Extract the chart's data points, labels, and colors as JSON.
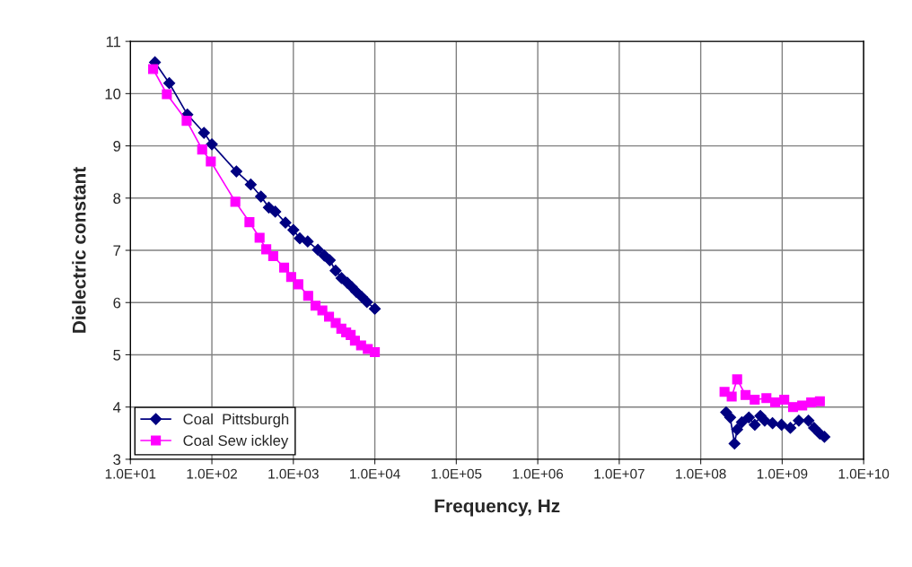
{
  "chart_data": {
    "type": "line",
    "xlabel": "Frequency, Hz",
    "ylabel": "Dielectric constant",
    "log": "x",
    "xlim": [
      10,
      10000000000
    ],
    "ylim": [
      3,
      11
    ],
    "xticks": [
      {
        "value": 10,
        "label": "1.0E+01"
      },
      {
        "value": 100,
        "label": "1.0E+02"
      },
      {
        "value": 1000,
        "label": "1.0E+03"
      },
      {
        "value": 10000,
        "label": "1.0E+04"
      },
      {
        "value": 100000,
        "label": "1.0E+05"
      },
      {
        "value": 1000000,
        "label": "1.0E+06"
      },
      {
        "value": 10000000,
        "label": "1.0E+07"
      },
      {
        "value": 100000000,
        "label": "1.0E+08"
      },
      {
        "value": 1000000000,
        "label": "1.0E+09"
      },
      {
        "value": 10000000000,
        "label": "1.0E+10"
      }
    ],
    "yticks": [
      3,
      4,
      5,
      6,
      7,
      8,
      9,
      10,
      11
    ],
    "grid": true,
    "legend": "bottom left",
    "line_style": "solid",
    "series": [
      {
        "name": "Coal  Pittsburgh",
        "color": "#000080",
        "marker": "diamond",
        "x": [
          20,
          30,
          50,
          80,
          100,
          200,
          300,
          400,
          500,
          600,
          800,
          1000,
          1200,
          1500,
          2000,
          2400,
          2800,
          3300,
          3900,
          4600,
          5200,
          5900,
          6900,
          8000,
          10000,
          null,
          205000000,
          230000000,
          260000000,
          280000000,
          320000000,
          390000000,
          460000000,
          540000000,
          610000000,
          760000000,
          980000000,
          1260000000,
          1600000000,
          2100000000,
          2460000000,
          2900000000,
          3300000000
        ],
        "values": [
          10.6,
          10.2,
          9.6,
          9.25,
          9.03,
          8.51,
          8.26,
          8.03,
          7.82,
          7.74,
          7.53,
          7.39,
          7.23,
          7.17,
          7.01,
          6.9,
          6.81,
          6.61,
          6.47,
          6.38,
          6.3,
          6.21,
          6.11,
          6.01,
          5.88,
          null,
          3.9,
          3.8,
          3.3,
          3.57,
          3.71,
          3.8,
          3.66,
          3.83,
          3.74,
          3.69,
          3.66,
          3.6,
          3.74,
          3.74,
          3.6,
          3.49,
          3.43
        ]
      },
      {
        "name": "Coal Sew ickley",
        "color": "#ff00ff",
        "marker": "square",
        "x": [
          19,
          28,
          49,
          76,
          97,
          194,
          289,
          385,
          465,
          566,
          770,
          940,
          1150,
          1520,
          1870,
          2270,
          2740,
          3310,
          3880,
          4450,
          5050,
          5700,
          6780,
          8200,
          10000,
          null,
          196000000,
          240000000,
          280000000,
          355000000,
          460000000,
          640000000,
          820000000,
          1060000000,
          1360000000,
          1760000000,
          2270000000,
          2900000000
        ],
        "values": [
          10.47,
          9.99,
          9.48,
          8.93,
          8.7,
          7.93,
          7.54,
          7.24,
          7.02,
          6.89,
          6.67,
          6.49,
          6.35,
          6.13,
          5.94,
          5.85,
          5.73,
          5.61,
          5.5,
          5.43,
          5.38,
          5.27,
          5.18,
          5.11,
          5.05,
          null,
          4.29,
          4.2,
          4.53,
          4.23,
          4.14,
          4.17,
          4.09,
          4.14,
          4.0,
          4.03,
          4.09,
          4.11
        ]
      }
    ]
  }
}
